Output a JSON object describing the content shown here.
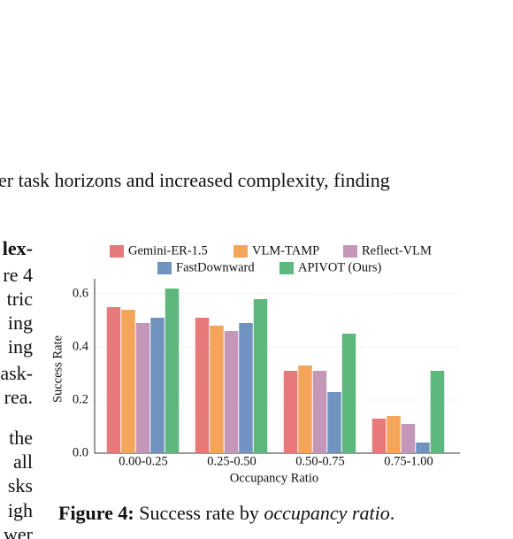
{
  "page": {
    "body_line": "er task horizons and increased complexity, finding",
    "left_fragments": [
      "lex-",
      "re 4",
      "tric",
      "ing",
      "ing",
      "ask-",
      "rea.",
      "the",
      "all",
      "sks",
      "igh",
      "wer"
    ],
    "caption": {
      "label": "Figure 4:",
      "text": "Success rate by",
      "emphasis": "occupancy ratio",
      "end": "."
    }
  },
  "chart_data": {
    "type": "bar",
    "x_label": "Occupancy Ratio",
    "y_label": "Success Rate",
    "categories": [
      "0.00-0.25",
      "0.25-0.50",
      "0.50-0.75",
      "0.75-1.00"
    ],
    "series": [
      {
        "name": "Gemini-ER-1.5",
        "color": "#e8797b",
        "values": [
          0.55,
          0.51,
          0.31,
          0.13
        ]
      },
      {
        "name": "VLM-TAMP",
        "color": "#f5a55a",
        "values": [
          0.54,
          0.48,
          0.33,
          0.14
        ]
      },
      {
        "name": "Reflect-VLM",
        "color": "#c497b8",
        "values": [
          0.49,
          0.46,
          0.31,
          0.11
        ]
      },
      {
        "name": "FastDownward",
        "color": "#7093c0",
        "values": [
          0.51,
          0.49,
          0.23,
          0.04
        ]
      },
      {
        "name": "APIVOT (Ours)",
        "color": "#5db87e",
        "values": [
          0.62,
          0.58,
          0.45,
          0.31
        ]
      }
    ],
    "ylim": [
      0,
      0.65
    ],
    "yticks": [
      {
        "value": 0,
        "label": "0.0"
      },
      0.2,
      0.4,
      0.6
    ],
    "grid": true
  }
}
